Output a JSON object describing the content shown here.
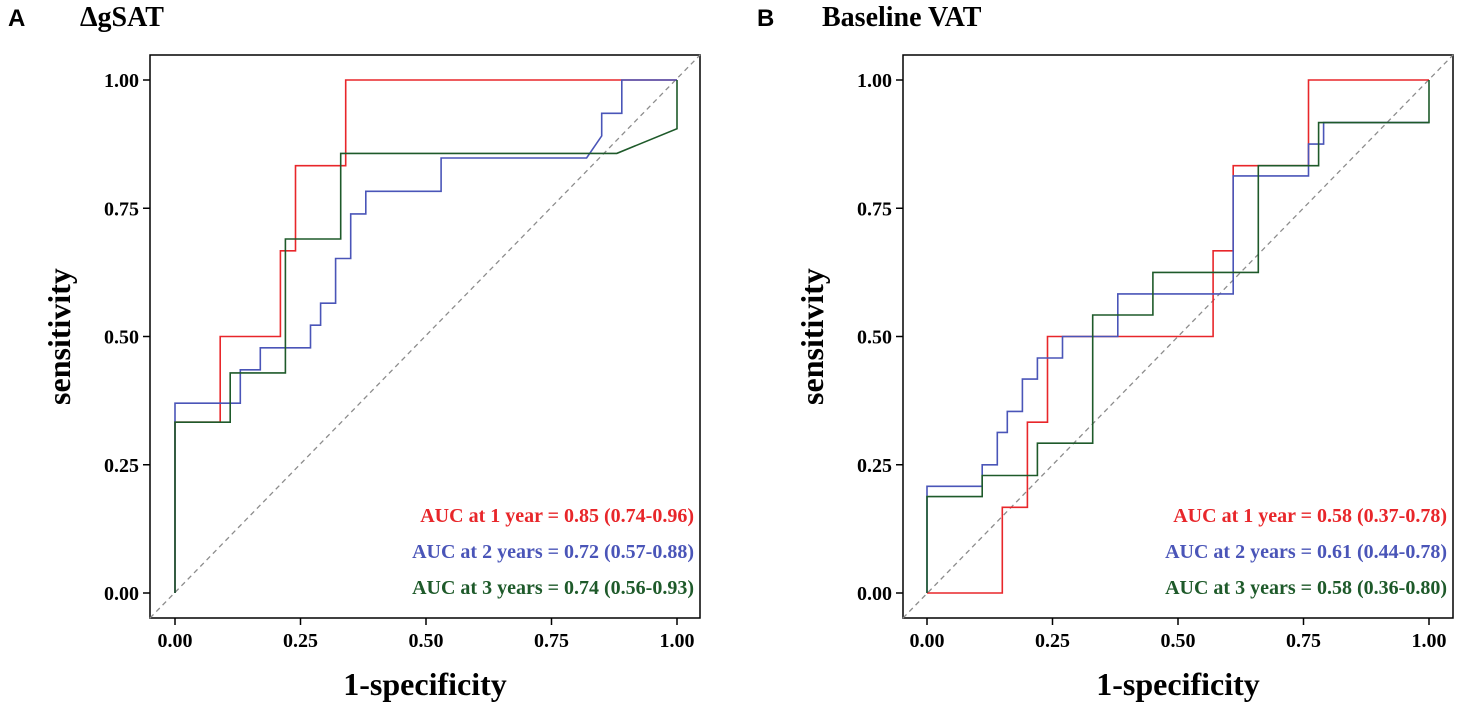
{
  "colors": {
    "year1": "#e8262a",
    "year2": "#4a55b8",
    "year3": "#1e5a2a",
    "diagonal": "#8c8c8c"
  },
  "chart_data": [
    {
      "panel": "A",
      "type": "line",
      "title": "ΔgSAT",
      "xlabel": "1-specificity",
      "ylabel": "sensitivity",
      "xlim": [
        0,
        1
      ],
      "ylim": [
        0,
        1
      ],
      "xticks": [
        "0.00",
        "0.25",
        "0.50",
        "0.75",
        "1.00"
      ],
      "yticks": [
        "0.00",
        "0.25",
        "0.50",
        "0.75",
        "1.00"
      ],
      "diagonal": true,
      "legend_position": "bottom-right",
      "series": [
        {
          "name": "AUC at 1 year",
          "label": "AUC at 1 year = 0.85 (0.74-0.96)",
          "color_key": "year1",
          "points": [
            [
              0,
              0
            ],
            [
              0,
              0.333
            ],
            [
              0.09,
              0.333
            ],
            [
              0.09,
              0.5
            ],
            [
              0.21,
              0.5
            ],
            [
              0.21,
              0.667
            ],
            [
              0.24,
              0.667
            ],
            [
              0.24,
              0.833
            ],
            [
              0.34,
              0.833
            ],
            [
              0.34,
              1
            ],
            [
              1,
              1
            ]
          ]
        },
        {
          "name": "AUC at 2 years",
          "label": "AUC at 2 years = 0.72 (0.57-0.88)",
          "color_key": "year2",
          "points": [
            [
              0,
              0
            ],
            [
              0,
              0.37
            ],
            [
              0.13,
              0.37
            ],
            [
              0.13,
              0.435
            ],
            [
              0.17,
              0.435
            ],
            [
              0.17,
              0.478
            ],
            [
              0.27,
              0.478
            ],
            [
              0.27,
              0.522
            ],
            [
              0.29,
              0.522
            ],
            [
              0.29,
              0.565
            ],
            [
              0.32,
              0.565
            ],
            [
              0.32,
              0.652
            ],
            [
              0.35,
              0.652
            ],
            [
              0.35,
              0.739
            ],
            [
              0.38,
              0.739
            ],
            [
              0.38,
              0.783
            ],
            [
              0.53,
              0.783
            ],
            [
              0.53,
              0.848
            ],
            [
              0.82,
              0.848
            ],
            [
              0.85,
              0.891
            ],
            [
              0.85,
              0.935
            ],
            [
              0.89,
              0.935
            ],
            [
              0.89,
              1
            ],
            [
              1,
              1
            ]
          ]
        },
        {
          "name": "AUC at 3 years",
          "label": "AUC at 3 years = 0.74 (0.56-0.93)",
          "color_key": "year3",
          "points": [
            [
              0,
              0
            ],
            [
              0,
              0.333
            ],
            [
              0.11,
              0.333
            ],
            [
              0.11,
              0.429
            ],
            [
              0.22,
              0.429
            ],
            [
              0.22,
              0.69
            ],
            [
              0.33,
              0.69
            ],
            [
              0.33,
              0.857
            ],
            [
              0.5,
              0.857
            ],
            [
              0.88,
              0.857
            ],
            [
              1,
              0.905
            ],
            [
              1,
              1
            ]
          ]
        }
      ]
    },
    {
      "panel": "B",
      "type": "line",
      "title": "Baseline VAT",
      "xlabel": "1-specificity",
      "ylabel": "sensitivity",
      "xlim": [
        0,
        1
      ],
      "ylim": [
        0,
        1
      ],
      "xticks": [
        "0.00",
        "0.25",
        "0.50",
        "0.75",
        "1.00"
      ],
      "yticks": [
        "0.00",
        "0.25",
        "0.50",
        "0.75",
        "1.00"
      ],
      "diagonal": true,
      "legend_position": "bottom-right",
      "series": [
        {
          "name": "AUC at 1 year",
          "label": "AUC at 1 year = 0.58 (0.37-0.78)",
          "color_key": "year1",
          "points": [
            [
              0,
              0
            ],
            [
              0.15,
              0
            ],
            [
              0.15,
              0.167
            ],
            [
              0.2,
              0.167
            ],
            [
              0.2,
              0.333
            ],
            [
              0.24,
              0.333
            ],
            [
              0.24,
              0.5
            ],
            [
              0.57,
              0.5
            ],
            [
              0.57,
              0.667
            ],
            [
              0.61,
              0.667
            ],
            [
              0.61,
              0.833
            ],
            [
              0.76,
              0.833
            ],
            [
              0.76,
              1
            ],
            [
              1,
              1
            ]
          ]
        },
        {
          "name": "AUC at 2 years",
          "label": "AUC at 2 years = 0.61 (0.44-0.78)",
          "color_key": "year2",
          "points": [
            [
              0,
              0
            ],
            [
              0,
              0.208
            ],
            [
              0.11,
              0.208
            ],
            [
              0.11,
              0.25
            ],
            [
              0.14,
              0.25
            ],
            [
              0.14,
              0.313
            ],
            [
              0.16,
              0.313
            ],
            [
              0.16,
              0.354
            ],
            [
              0.19,
              0.354
            ],
            [
              0.19,
              0.417
            ],
            [
              0.22,
              0.417
            ],
            [
              0.22,
              0.458
            ],
            [
              0.27,
              0.458
            ],
            [
              0.27,
              0.5
            ],
            [
              0.38,
              0.5
            ],
            [
              0.38,
              0.583
            ],
            [
              0.61,
              0.583
            ],
            [
              0.61,
              0.813
            ],
            [
              0.76,
              0.813
            ],
            [
              0.76,
              0.875
            ],
            [
              0.79,
              0.875
            ],
            [
              0.79,
              0.917
            ],
            [
              1,
              0.917
            ]
          ]
        },
        {
          "name": "AUC at 3 years",
          "label": "AUC at 3 years = 0.58 (0.36-0.80)",
          "color_key": "year3",
          "points": [
            [
              0,
              0
            ],
            [
              0,
              0.188
            ],
            [
              0.11,
              0.188
            ],
            [
              0.11,
              0.229
            ],
            [
              0.22,
              0.229
            ],
            [
              0.22,
              0.292
            ],
            [
              0.33,
              0.292
            ],
            [
              0.33,
              0.542
            ],
            [
              0.45,
              0.542
            ],
            [
              0.45,
              0.625
            ],
            [
              0.66,
              0.625
            ],
            [
              0.66,
              0.833
            ],
            [
              0.78,
              0.833
            ],
            [
              0.78,
              0.917
            ],
            [
              1,
              0.917
            ],
            [
              1,
              1
            ]
          ]
        }
      ]
    }
  ]
}
